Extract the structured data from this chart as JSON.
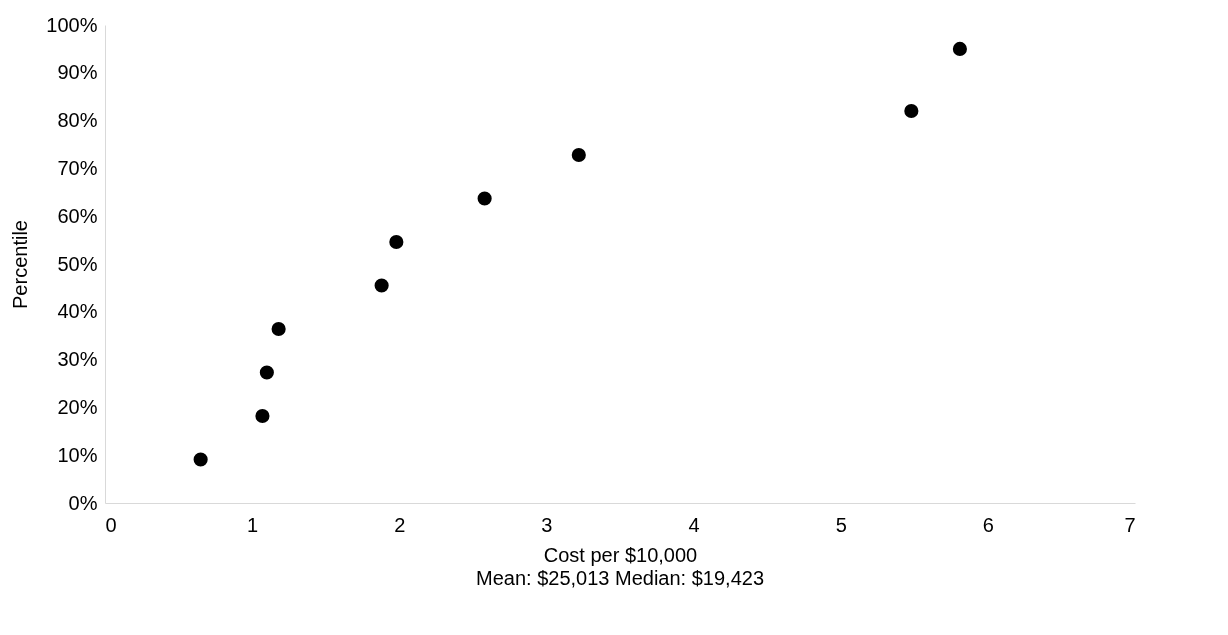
{
  "chart_data": {
    "type": "scatter",
    "xlabel": "Cost per $10,000",
    "ylabel": "Percentile",
    "annotations": [
      "Mean: $25,013      Median: $19,423"
    ],
    "series": [
      {
        "color": "#000000",
        "x": [
          0.65,
          1.07,
          1.1,
          1.18,
          1.88,
          1.98,
          2.58,
          3.22,
          5.48,
          5.81
        ],
        "values": [
          9.1,
          18.2,
          27.3,
          36.4,
          45.5,
          54.6,
          63.7,
          72.8,
          82,
          95
        ]
      }
    ],
    "xlim": [
      0,
      7
    ],
    "xticks": [
      0,
      1,
      2,
      3,
      4,
      5,
      6,
      7
    ],
    "ylim": [
      0,
      100
    ],
    "yticks": [
      {
        "value": 0,
        "label": "0%"
      },
      {
        "value": 10,
        "label": "10%"
      },
      {
        "value": 20,
        "label": "20%"
      },
      {
        "value": 30,
        "label": "30%"
      },
      {
        "value": 40,
        "label": "40%"
      },
      {
        "value": 50,
        "label": "50%"
      },
      {
        "value": 60,
        "label": "60%"
      },
      {
        "value": 70,
        "label": "70%"
      },
      {
        "value": 80,
        "label": "80%"
      },
      {
        "value": 90,
        "label": "90%"
      },
      {
        "value": 100,
        "label": "100%"
      }
    ],
    "grid": false
  }
}
